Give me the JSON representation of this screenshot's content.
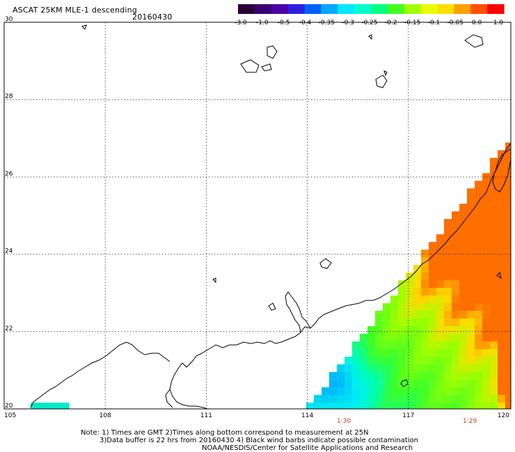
{
  "header": {
    "title": "ASCAT 25KM MLE-1 descending",
    "date": "20160430"
  },
  "colorbar": {
    "labels": [
      "-3.0",
      "-1.0",
      "-0.5",
      "-0.4",
      "-0.35",
      "-0.3",
      "-0.25",
      "-0.2",
      "-0.15",
      "-0.1",
      "-0.05",
      "0.0",
      "1.0"
    ],
    "colors": [
      "#2a0030",
      "#3b0070",
      "#4b00a8",
      "#2e20e0",
      "#0060ff",
      "#00a8ff",
      "#00e8ff",
      "#00ffd0",
      "#00ff80",
      "#40ff20",
      "#a0ff00",
      "#e8ff00",
      "#ffe000",
      "#ffa000",
      "#ff5000",
      "#ff0000"
    ]
  },
  "axes": {
    "lat_ticks": [
      "30",
      "28",
      "26",
      "24",
      "22",
      "20"
    ],
    "lon_ticks": [
      "105",
      "108",
      "111",
      "114",
      "117",
      "120"
    ]
  },
  "pass_times": [
    "1:30",
    "1:29"
  ],
  "notes": {
    "line1": "Note: 1) Times are GMT 2)Times along bottom correspond to measurement at 25N",
    "line2": "3)Data buffer is 22 hrs from 20160430 4) Black wind barbs indicate possible contamination",
    "line3": "NOAA/NESDIS/Center for Satellite Applications and Research"
  }
}
